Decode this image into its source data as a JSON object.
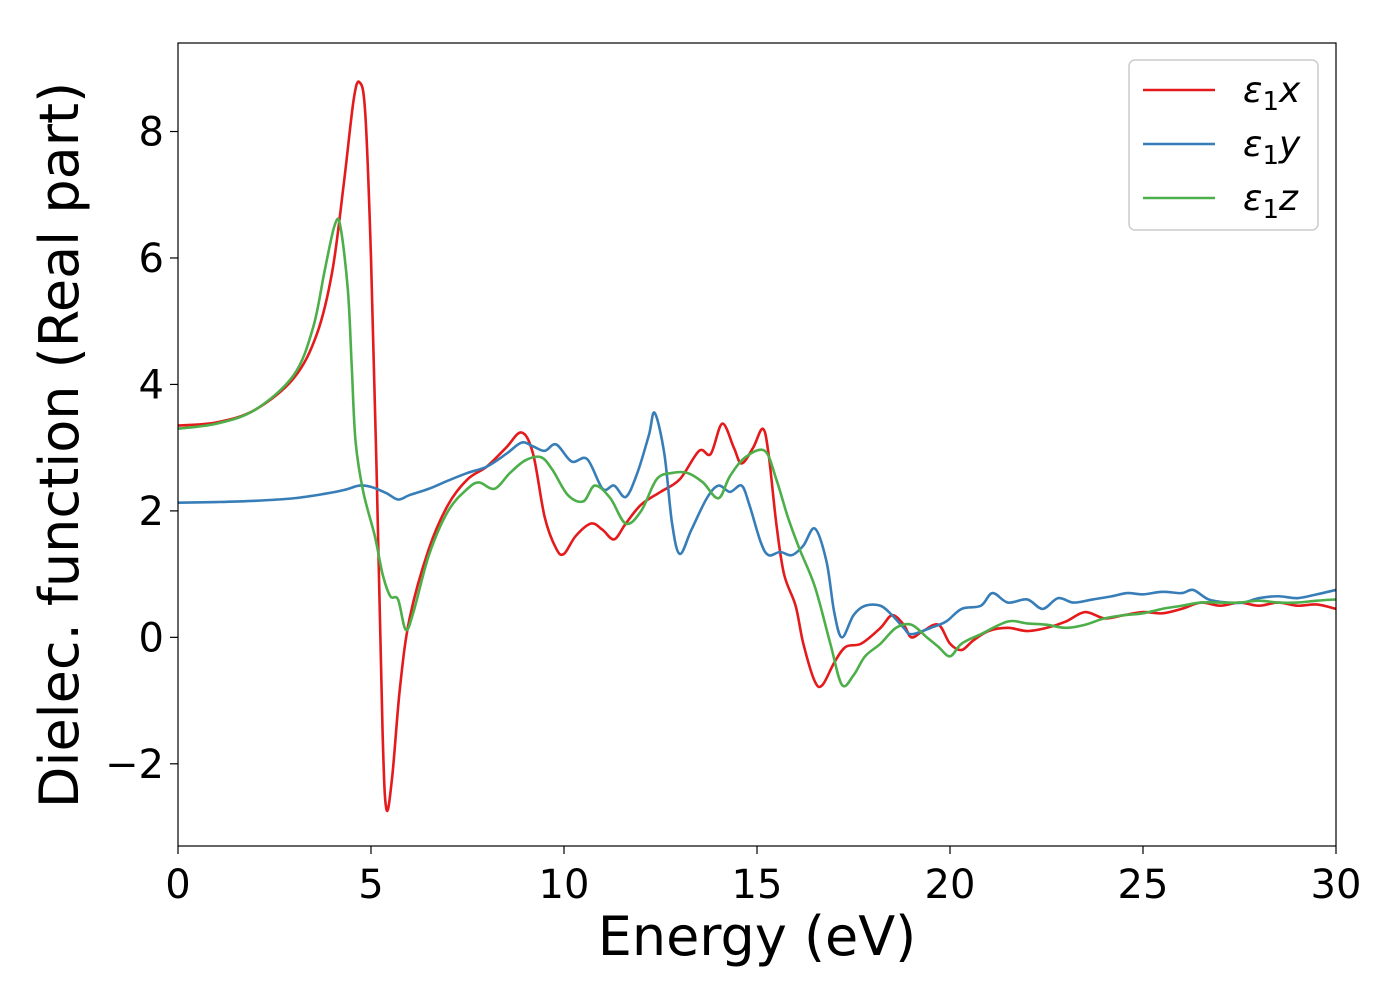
{
  "chart_data": {
    "type": "line",
    "xlabel": "Energy (eV)",
    "ylabel": "Dielec. function (Real part)",
    "xlim": [
      0,
      30
    ],
    "ylim": [
      -3.3,
      9.4
    ],
    "xticks": [
      0,
      5,
      10,
      15,
      20,
      25,
      30
    ],
    "xtick_labels": [
      "0",
      "5",
      "10",
      "15",
      "20",
      "25",
      "30"
    ],
    "yticks": [
      -2,
      0,
      2,
      4,
      6,
      8
    ],
    "ytick_labels": [
      "−2",
      "0",
      "2",
      "4",
      "6",
      "8"
    ],
    "grid": false,
    "legend_position": "top-right",
    "series": [
      {
        "name": "ε₁x",
        "legend_base": "ε",
        "legend_sub": "1",
        "legend_var": "x",
        "color": "#e41a1c",
        "points": [
          [
            0,
            3.35
          ],
          [
            1,
            3.4
          ],
          [
            2,
            3.6
          ],
          [
            3,
            4.1
          ],
          [
            3.6,
            4.8
          ],
          [
            4,
            5.8
          ],
          [
            4.3,
            7.2
          ],
          [
            4.55,
            8.5
          ],
          [
            4.7,
            8.78
          ],
          [
            4.85,
            8.3
          ],
          [
            5,
            6
          ],
          [
            5.15,
            2.5
          ],
          [
            5.3,
            -1.5
          ],
          [
            5.4,
            -2.72
          ],
          [
            5.55,
            -2.2
          ],
          [
            5.75,
            -0.8
          ],
          [
            6,
            0.3
          ],
          [
            6.5,
            1.4
          ],
          [
            7,
            2.1
          ],
          [
            7.5,
            2.5
          ],
          [
            8,
            2.7
          ],
          [
            8.5,
            3.0
          ],
          [
            8.9,
            3.24
          ],
          [
            9.2,
            2.9
          ],
          [
            9.5,
            1.9
          ],
          [
            9.8,
            1.4
          ],
          [
            10,
            1.32
          ],
          [
            10.3,
            1.6
          ],
          [
            10.7,
            1.8
          ],
          [
            11,
            1.7
          ],
          [
            11.3,
            1.55
          ],
          [
            11.6,
            1.8
          ],
          [
            12,
            2.1
          ],
          [
            12.5,
            2.3
          ],
          [
            13,
            2.5
          ],
          [
            13.5,
            2.95
          ],
          [
            13.8,
            2.9
          ],
          [
            14.1,
            3.38
          ],
          [
            14.4,
            3.0
          ],
          [
            14.6,
            2.75
          ],
          [
            14.9,
            3.0
          ],
          [
            15.15,
            3.3
          ],
          [
            15.3,
            2.9
          ],
          [
            15.5,
            1.8
          ],
          [
            15.7,
            1.0
          ],
          [
            16,
            0.5
          ],
          [
            16.2,
            -0.1
          ],
          [
            16.5,
            -0.7
          ],
          [
            16.7,
            -0.75
          ],
          [
            17,
            -0.4
          ],
          [
            17.3,
            -0.15
          ],
          [
            17.7,
            -0.1
          ],
          [
            18.2,
            0.15
          ],
          [
            18.5,
            0.35
          ],
          [
            18.8,
            0.2
          ],
          [
            19,
            0.0
          ],
          [
            19.3,
            0.1
          ],
          [
            19.7,
            0.2
          ],
          [
            20,
            -0.1
          ],
          [
            20.3,
            -0.2
          ],
          [
            20.6,
            -0.05
          ],
          [
            21,
            0.1
          ],
          [
            21.5,
            0.15
          ],
          [
            22,
            0.1
          ],
          [
            22.5,
            0.15
          ],
          [
            23,
            0.25
          ],
          [
            23.5,
            0.4
          ],
          [
            24,
            0.3
          ],
          [
            24.5,
            0.35
          ],
          [
            25,
            0.4
          ],
          [
            25.5,
            0.38
          ],
          [
            26,
            0.45
          ],
          [
            26.5,
            0.55
          ],
          [
            27,
            0.5
          ],
          [
            27.5,
            0.55
          ],
          [
            28,
            0.5
          ],
          [
            28.5,
            0.55
          ],
          [
            29,
            0.5
          ],
          [
            29.5,
            0.52
          ],
          [
            30,
            0.45
          ]
        ]
      },
      {
        "name": "ε₁y",
        "legend_base": "ε",
        "legend_sub": "1",
        "legend_var": "y",
        "color": "#377eb8",
        "points": [
          [
            0,
            2.13
          ],
          [
            1,
            2.14
          ],
          [
            2,
            2.16
          ],
          [
            3,
            2.2
          ],
          [
            3.8,
            2.27
          ],
          [
            4.3,
            2.33
          ],
          [
            4.7,
            2.4
          ],
          [
            5,
            2.38
          ],
          [
            5.4,
            2.28
          ],
          [
            5.7,
            2.18
          ],
          [
            6,
            2.25
          ],
          [
            6.5,
            2.35
          ],
          [
            7,
            2.48
          ],
          [
            7.5,
            2.6
          ],
          [
            8,
            2.7
          ],
          [
            8.5,
            2.9
          ],
          [
            8.9,
            3.08
          ],
          [
            9.2,
            3.02
          ],
          [
            9.5,
            2.95
          ],
          [
            9.8,
            3.05
          ],
          [
            10.2,
            2.78
          ],
          [
            10.6,
            2.82
          ],
          [
            11,
            2.35
          ],
          [
            11.3,
            2.4
          ],
          [
            11.6,
            2.22
          ],
          [
            11.9,
            2.6
          ],
          [
            12.2,
            3.2
          ],
          [
            12.35,
            3.55
          ],
          [
            12.6,
            2.9
          ],
          [
            12.8,
            1.8
          ],
          [
            13,
            1.32
          ],
          [
            13.3,
            1.7
          ],
          [
            13.7,
            2.2
          ],
          [
            14,
            2.4
          ],
          [
            14.3,
            2.3
          ],
          [
            14.6,
            2.4
          ],
          [
            14.8,
            2.1
          ],
          [
            15.1,
            1.5
          ],
          [
            15.3,
            1.3
          ],
          [
            15.6,
            1.35
          ],
          [
            15.9,
            1.3
          ],
          [
            16.2,
            1.45
          ],
          [
            16.5,
            1.72
          ],
          [
            16.8,
            1.2
          ],
          [
            17,
            0.4
          ],
          [
            17.2,
            0.0
          ],
          [
            17.5,
            0.35
          ],
          [
            17.8,
            0.5
          ],
          [
            18.2,
            0.5
          ],
          [
            18.5,
            0.35
          ],
          [
            18.8,
            0.15
          ],
          [
            19,
            0.05
          ],
          [
            19.5,
            0.15
          ],
          [
            19.9,
            0.25
          ],
          [
            20.3,
            0.45
          ],
          [
            20.8,
            0.5
          ],
          [
            21.1,
            0.7
          ],
          [
            21.5,
            0.55
          ],
          [
            22,
            0.6
          ],
          [
            22.4,
            0.45
          ],
          [
            22.8,
            0.62
          ],
          [
            23.2,
            0.55
          ],
          [
            23.7,
            0.6
          ],
          [
            24.2,
            0.65
          ],
          [
            24.6,
            0.7
          ],
          [
            25,
            0.68
          ],
          [
            25.5,
            0.72
          ],
          [
            26,
            0.7
          ],
          [
            26.3,
            0.75
          ],
          [
            26.7,
            0.6
          ],
          [
            27.2,
            0.55
          ],
          [
            27.6,
            0.55
          ],
          [
            28,
            0.62
          ],
          [
            28.5,
            0.65
          ],
          [
            29,
            0.62
          ],
          [
            29.5,
            0.68
          ],
          [
            30,
            0.75
          ]
        ]
      },
      {
        "name": "ε₁z",
        "legend_base": "ε",
        "legend_sub": "1",
        "legend_var": "z",
        "color": "#4daf4a",
        "points": [
          [
            0,
            3.3
          ],
          [
            1,
            3.38
          ],
          [
            2,
            3.6
          ],
          [
            3,
            4.15
          ],
          [
            3.5,
            4.9
          ],
          [
            3.8,
            5.8
          ],
          [
            4.05,
            6.5
          ],
          [
            4.2,
            6.52
          ],
          [
            4.4,
            5.5
          ],
          [
            4.5,
            4.3
          ],
          [
            4.6,
            3.1
          ],
          [
            4.8,
            2.3
          ],
          [
            5.1,
            1.6
          ],
          [
            5.3,
            1.0
          ],
          [
            5.5,
            0.65
          ],
          [
            5.7,
            0.6
          ],
          [
            5.9,
            0.12
          ],
          [
            6.1,
            0.4
          ],
          [
            6.5,
            1.3
          ],
          [
            7,
            2.0
          ],
          [
            7.5,
            2.35
          ],
          [
            7.8,
            2.45
          ],
          [
            8.2,
            2.35
          ],
          [
            8.6,
            2.6
          ],
          [
            9,
            2.8
          ],
          [
            9.4,
            2.85
          ],
          [
            9.7,
            2.65
          ],
          [
            10.1,
            2.25
          ],
          [
            10.5,
            2.15
          ],
          [
            10.8,
            2.4
          ],
          [
            11.2,
            2.2
          ],
          [
            11.6,
            1.8
          ],
          [
            12,
            2.0
          ],
          [
            12.4,
            2.5
          ],
          [
            12.8,
            2.6
          ],
          [
            13.2,
            2.6
          ],
          [
            13.6,
            2.45
          ],
          [
            14,
            2.2
          ],
          [
            14.3,
            2.55
          ],
          [
            14.7,
            2.85
          ],
          [
            15.2,
            2.95
          ],
          [
            15.5,
            2.5
          ],
          [
            15.8,
            1.9
          ],
          [
            16.1,
            1.4
          ],
          [
            16.5,
            0.8
          ],
          [
            16.9,
            -0.1
          ],
          [
            17.2,
            -0.75
          ],
          [
            17.5,
            -0.6
          ],
          [
            17.8,
            -0.3
          ],
          [
            18.2,
            -0.1
          ],
          [
            18.6,
            0.15
          ],
          [
            19,
            0.2
          ],
          [
            19.4,
            0.0
          ],
          [
            19.7,
            -0.15
          ],
          [
            20,
            -0.3
          ],
          [
            20.3,
            -0.1
          ],
          [
            20.8,
            0.05
          ],
          [
            21.5,
            0.25
          ],
          [
            22,
            0.22
          ],
          [
            22.5,
            0.2
          ],
          [
            23,
            0.15
          ],
          [
            23.5,
            0.2
          ],
          [
            24,
            0.3
          ],
          [
            24.5,
            0.35
          ],
          [
            25,
            0.38
          ],
          [
            25.5,
            0.45
          ],
          [
            26,
            0.5
          ],
          [
            26.5,
            0.55
          ],
          [
            27,
            0.55
          ],
          [
            27.5,
            0.55
          ],
          [
            28,
            0.58
          ],
          [
            28.5,
            0.55
          ],
          [
            29,
            0.55
          ],
          [
            29.5,
            0.58
          ],
          [
            30,
            0.6
          ]
        ]
      }
    ]
  }
}
